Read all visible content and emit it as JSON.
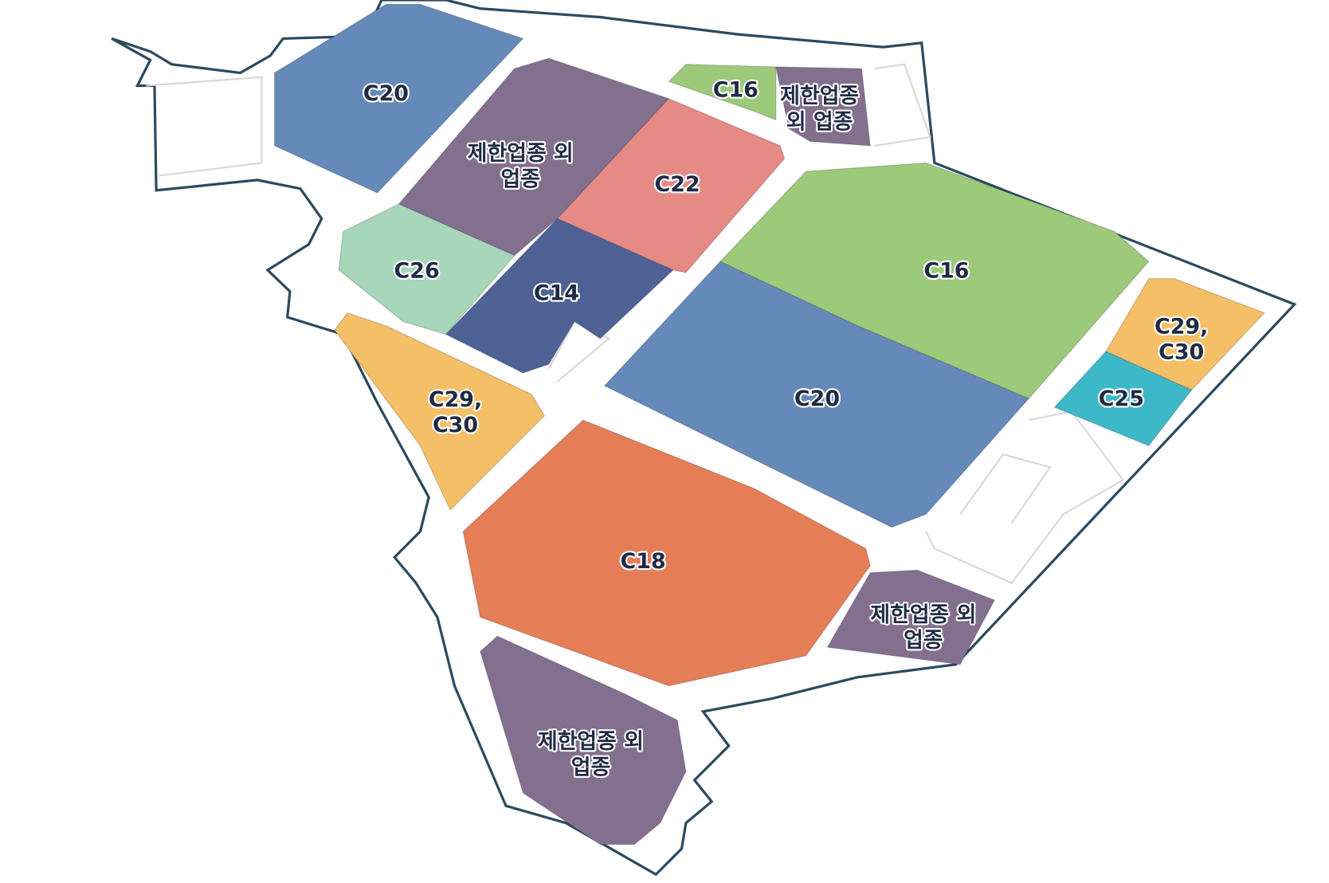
{
  "zones": [
    {
      "lines": [
        "C20"
      ]
    },
    {
      "lines": [
        "제한업종 외",
        "업종"
      ]
    },
    {
      "lines": [
        "C22"
      ]
    },
    {
      "lines": [
        "C16"
      ]
    },
    {
      "lines": [
        "제한업종",
        "외 업종"
      ]
    },
    {
      "lines": [
        "C16"
      ]
    },
    {
      "lines": [
        "C26"
      ]
    },
    {
      "lines": [
        "C14"
      ]
    },
    {
      "lines": [
        "C29,",
        "C30"
      ]
    },
    {
      "lines": [
        "C20"
      ]
    },
    {
      "lines": [
        "C29,",
        "C30"
      ]
    },
    {
      "lines": [
        "C25"
      ]
    },
    {
      "lines": [
        "C18"
      ]
    },
    {
      "lines": [
        "제한업종 외",
        "업종"
      ]
    },
    {
      "lines": [
        "제한업종 외",
        "업종"
      ]
    }
  ]
}
